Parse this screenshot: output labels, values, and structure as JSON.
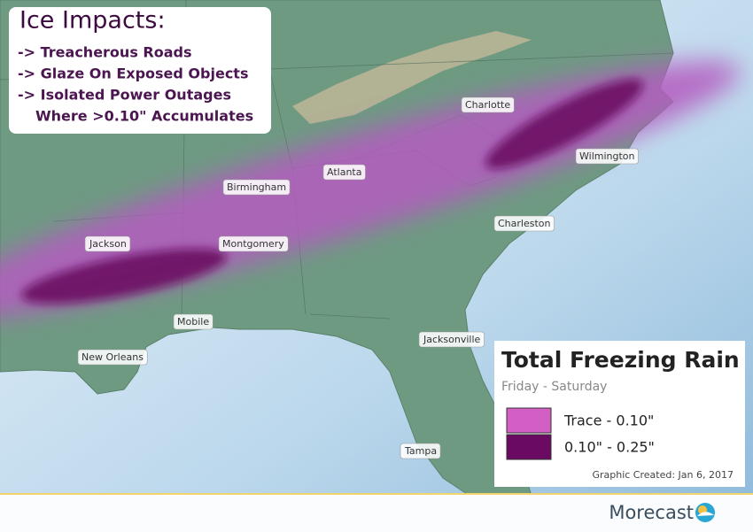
{
  "impacts": {
    "title": "Ice Impacts:",
    "items": [
      "-> Treacherous Roads",
      "-> Glaze On Exposed Objects",
      "-> Isolated Power Outages",
      "Where >0.10\" Accumulates"
    ]
  },
  "cities": [
    "Charlotte",
    "Wilmington",
    "Atlanta",
    "Birmingham",
    "Charleston",
    "Jackson",
    "Montgomery",
    "Mobile",
    "Jacksonville",
    "New Orleans",
    "Tampa"
  ],
  "legend": {
    "title": "Total Freezing Rain",
    "subtitle": "Friday - Saturday",
    "entries": [
      {
        "label": "Trace - 0.10\"",
        "color": "#d45fc4"
      },
      {
        "label": "0.10\" - 0.25\"",
        "color": "#6b0a63"
      }
    ],
    "credit": "Graphic Created: Jan 6, 2017"
  },
  "brand": "Morecast"
}
